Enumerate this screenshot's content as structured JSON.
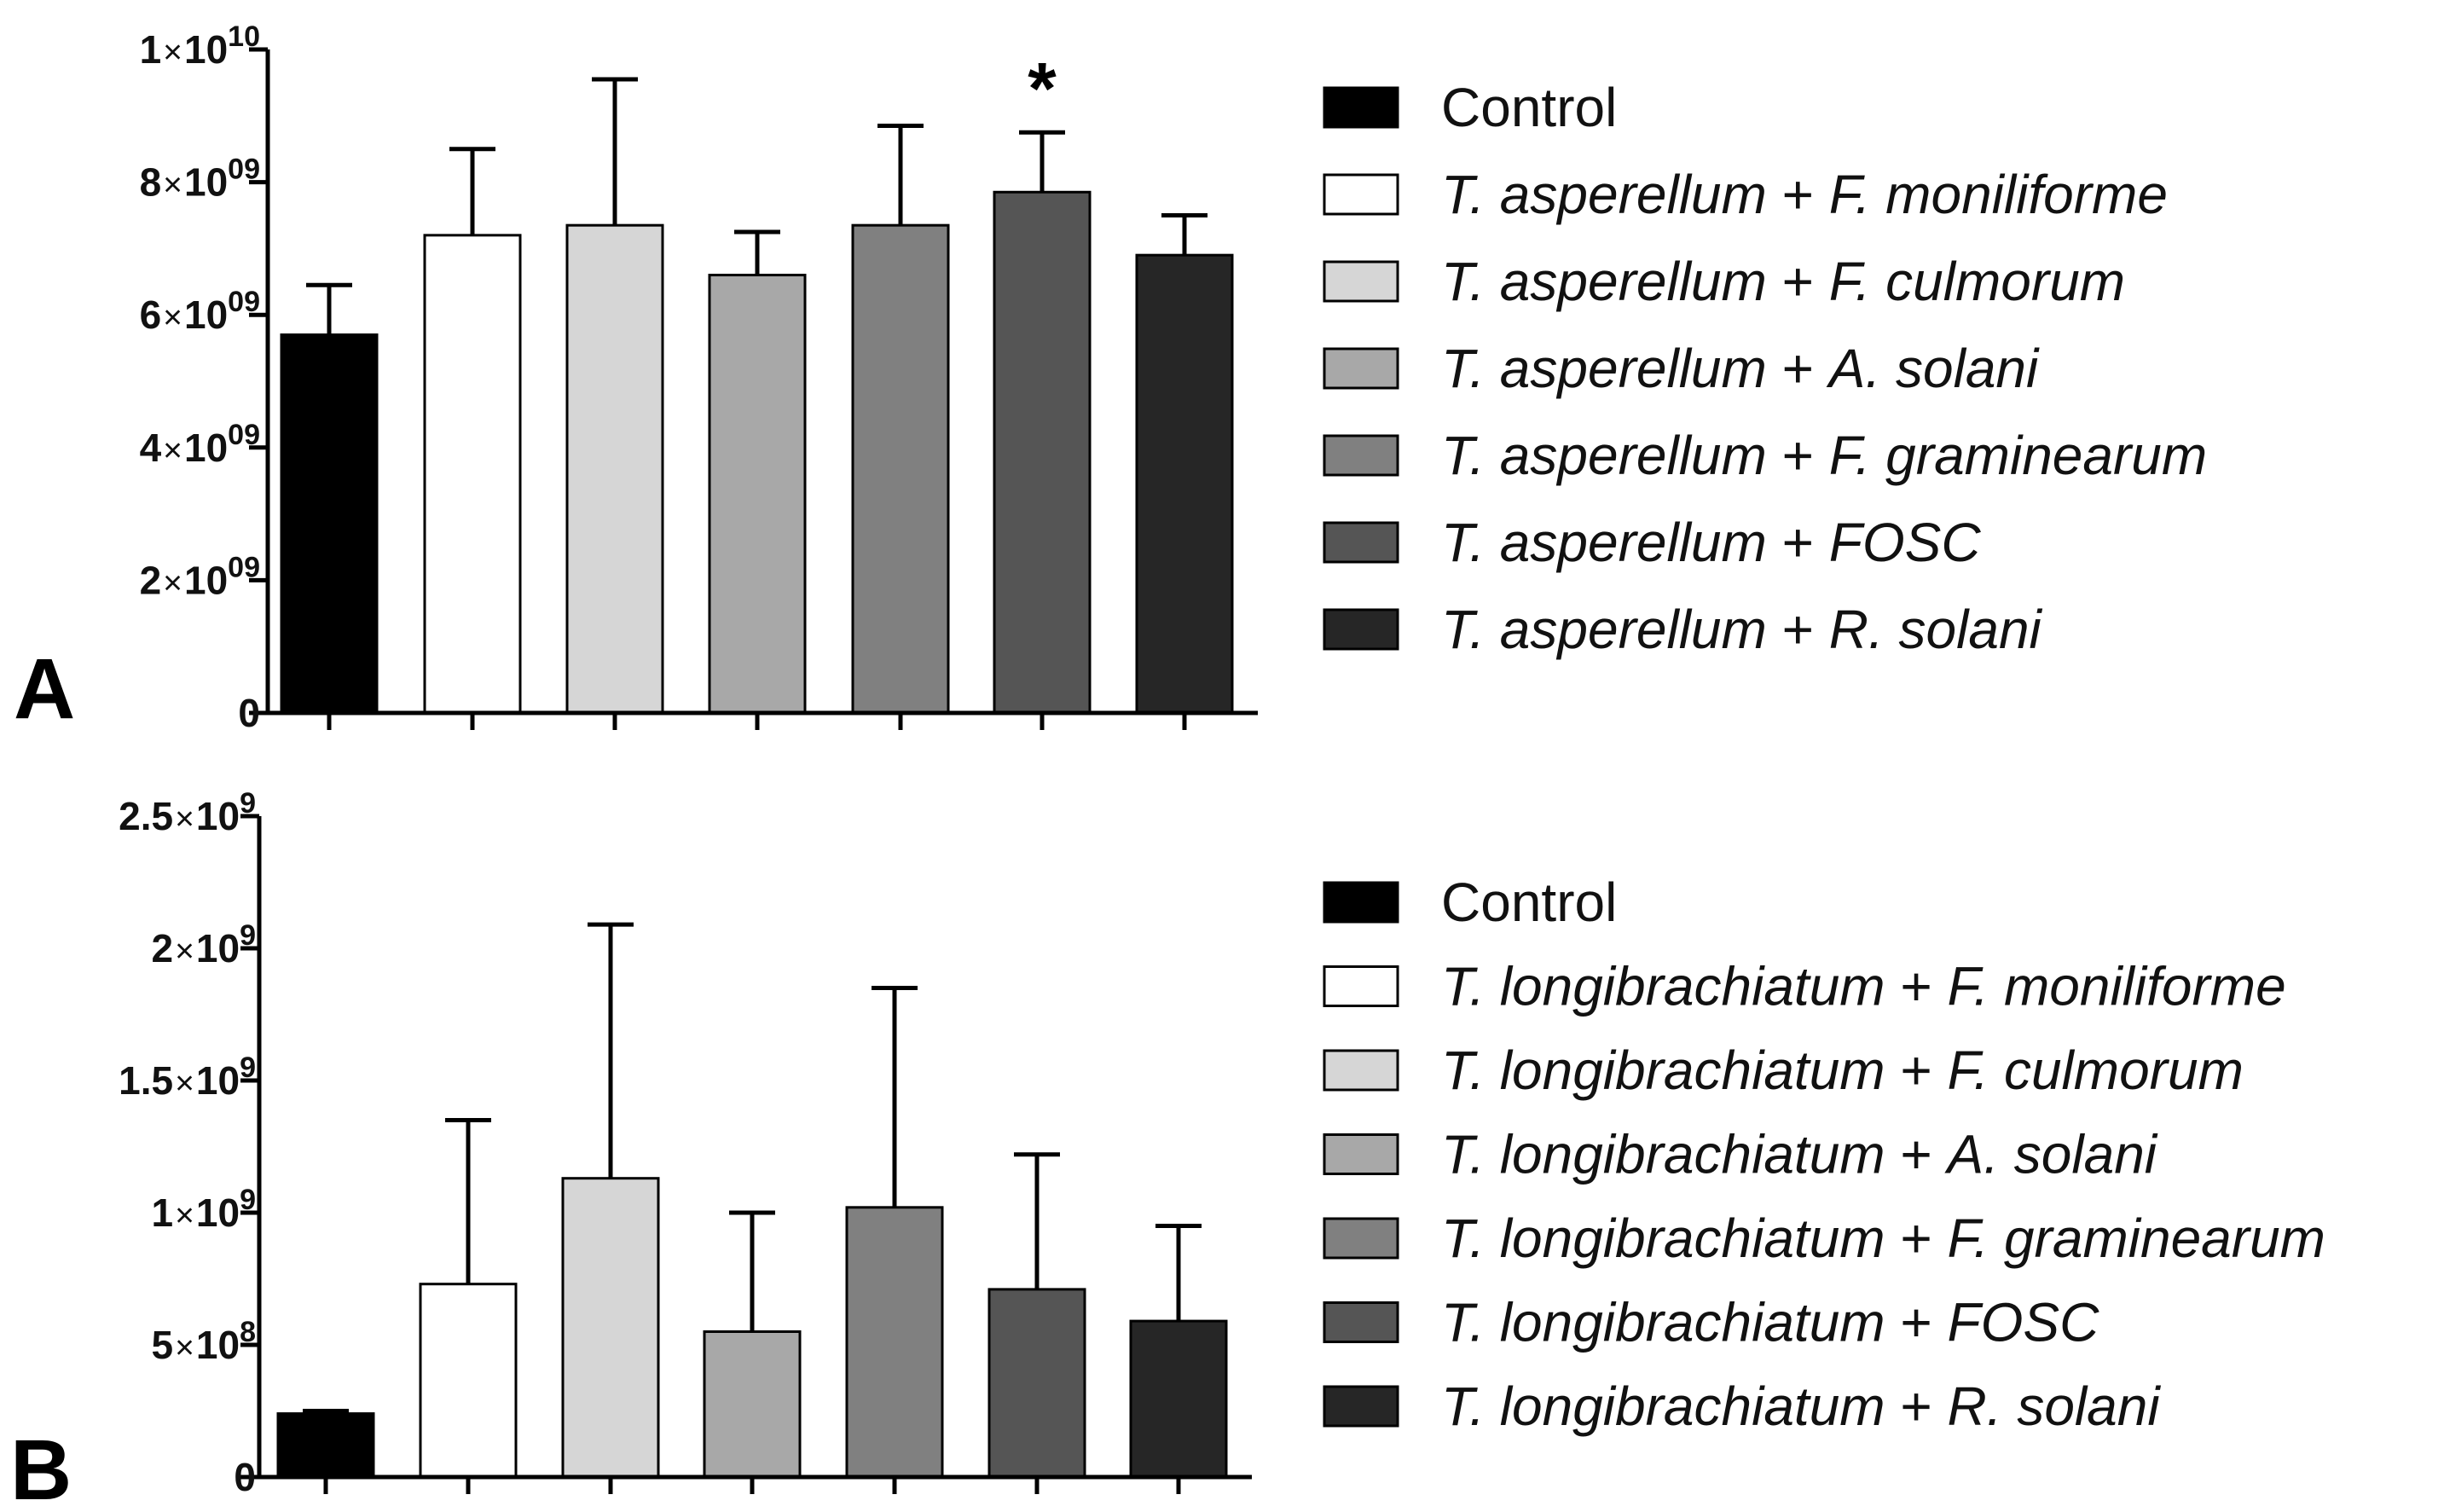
{
  "figure_title": "",
  "chart_data": [
    {
      "type": "bar",
      "panel_label": "A",
      "title": "",
      "xlabel": "",
      "ylabel": "",
      "ylim": [
        0,
        10000000000
      ],
      "grid": false,
      "legend_position": "right",
      "ytick_values": [
        0,
        2000000000,
        4000000000,
        6000000000,
        8000000000,
        10000000000
      ],
      "ytick_labels": [
        {
          "mantissa": "0",
          "exponent": ""
        },
        {
          "mantissa": "2",
          "exponent": "09"
        },
        {
          "mantissa": "4",
          "exponent": "09"
        },
        {
          "mantissa": "6",
          "exponent": "09"
        },
        {
          "mantissa": "8",
          "exponent": "09"
        },
        {
          "mantissa": "1",
          "exponent": "10"
        }
      ],
      "times_symbol": "×",
      "tick_base": "10",
      "categories": [
        {
          "prefix": "",
          "genus1": "",
          "plus": "",
          "genus2": "",
          "plain": "Control"
        },
        {
          "prefix": "T. ",
          "genus1": "asperellum",
          "plus": " + ",
          "genus2": "F. moniliforme",
          "plain": ""
        },
        {
          "prefix": "T. ",
          "genus1": "asperellum",
          "plus": " + ",
          "genus2": "F. culmorum",
          "plain": ""
        },
        {
          "prefix": "T. ",
          "genus1": "asperellum",
          "plus": " + ",
          "genus2": "A. solani",
          "plain": ""
        },
        {
          "prefix": "T. ",
          "genus1": "asperellum",
          "plus": " + ",
          "genus2": "F. graminearum",
          "plain": ""
        },
        {
          "prefix": "T. ",
          "genus1": "asperellum",
          "plus": " + ",
          "genus2": "FOSC",
          "plain": ""
        },
        {
          "prefix": "T. ",
          "genus1": "asperellum",
          "plus": " + ",
          "genus2": "R. solani",
          "plain": ""
        }
      ],
      "values": [
        5700000000,
        7200000000,
        7350000000,
        6600000000,
        7350000000,
        7850000000,
        6900000000
      ],
      "errors": [
        750000000,
        1300000000,
        2200000000,
        650000000,
        1500000000,
        900000000,
        600000000
      ],
      "colors": [
        "#000000",
        "#ffffff",
        "#d6d6d6",
        "#a8a8a8",
        "#808080",
        "#555555",
        "#262626"
      ],
      "annotations": [
        {
          "category_index": 5,
          "text": "*"
        }
      ]
    },
    {
      "type": "bar",
      "panel_label": "B",
      "title": "",
      "xlabel": "",
      "ylabel": "",
      "ylim": [
        0,
        2500000000
      ],
      "grid": false,
      "legend_position": "right",
      "ytick_values": [
        0,
        500000000,
        1000000000,
        1500000000,
        2000000000,
        2500000000
      ],
      "ytick_labels": [
        {
          "mantissa": "0",
          "exponent": ""
        },
        {
          "mantissa": "5",
          "exponent": "8"
        },
        {
          "mantissa": "1",
          "exponent": "9"
        },
        {
          "mantissa": "1.5",
          "exponent": "9"
        },
        {
          "mantissa": "2",
          "exponent": "9"
        },
        {
          "mantissa": "2.5",
          "exponent": "9"
        }
      ],
      "times_symbol": "×",
      "tick_base": "10",
      "categories": [
        {
          "prefix": "",
          "genus1": "",
          "plus": "",
          "genus2": "",
          "plain": "Control"
        },
        {
          "prefix": "T. ",
          "genus1": "longibrachiatum",
          "plus": " + ",
          "genus2": "F. moniliforme",
          "plain": ""
        },
        {
          "prefix": "T. ",
          "genus1": "longibrachiatum",
          "plus": " + ",
          "genus2": "F. culmorum",
          "plain": ""
        },
        {
          "prefix": "T. ",
          "genus1": "longibrachiatum",
          "plus": " + ",
          "genus2": "A. solani",
          "plain": ""
        },
        {
          "prefix": "T. ",
          "genus1": "longibrachiatum",
          "plus": " + ",
          "genus2": "F. graminearum",
          "plain": ""
        },
        {
          "prefix": "T. ",
          "genus1": "longibrachiatum",
          "plus": " + ",
          "genus2": "FOSC",
          "plain": ""
        },
        {
          "prefix": "T. ",
          "genus1": "longibrachiatum",
          "plus": " + ",
          "genus2": "R. solani",
          "plain": ""
        }
      ],
      "values": [
        240000000,
        730000000,
        1130000000,
        550000000,
        1020000000,
        710000000,
        590000000
      ],
      "errors": [
        10000000,
        620000000,
        960000000,
        450000000,
        830000000,
        510000000,
        360000000
      ],
      "colors": [
        "#000000",
        "#ffffff",
        "#d6d6d6",
        "#a8a8a8",
        "#808080",
        "#555555",
        "#262626"
      ],
      "annotations": []
    }
  ]
}
